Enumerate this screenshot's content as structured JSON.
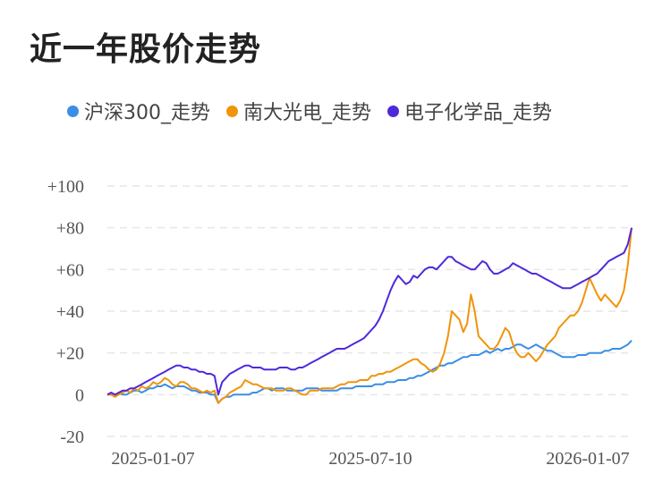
{
  "title": "近一年股价走势",
  "chart_data": {
    "type": "line",
    "title": "近一年股价走势",
    "ylim": [
      -20,
      100
    ],
    "yticks": [
      -20,
      0,
      20,
      40,
      60,
      80,
      100
    ],
    "ytick_labels": [
      "-20",
      "0",
      "+20",
      "+40",
      "+60",
      "+80",
      "+100"
    ],
    "x_tick_labels": [
      "2025-01-07",
      "2025-07-10",
      "2026-01-07"
    ],
    "grid": true,
    "legend_position": "top",
    "series": [
      {
        "name": "沪深300_走势",
        "color": "#3a8ee6",
        "values": [
          0,
          0,
          -1,
          1,
          0,
          0,
          1,
          2,
          2,
          1,
          2,
          3,
          3,
          4,
          4,
          5,
          4,
          3,
          4,
          4,
          4,
          3,
          2,
          2,
          1,
          1,
          1,
          0,
          0,
          -4,
          -2,
          -1,
          -1,
          0,
          0,
          0,
          0,
          0,
          1,
          1,
          2,
          3,
          3,
          2,
          3,
          3,
          3,
          2,
          2,
          2,
          2,
          2,
          3,
          3,
          3,
          3,
          2,
          2,
          2,
          2,
          2,
          3,
          3,
          3,
          3,
          4,
          4,
          4,
          4,
          4,
          5,
          5,
          5,
          6,
          6,
          6,
          7,
          7,
          7,
          8,
          8,
          9,
          9,
          10,
          11,
          12,
          13,
          14,
          14,
          15,
          15,
          16,
          17,
          18,
          18,
          19,
          19,
          19,
          20,
          21,
          20,
          21,
          22,
          21,
          22,
          22,
          23,
          24,
          24,
          23,
          22,
          23,
          24,
          23,
          22,
          21,
          21,
          20,
          19,
          18,
          18,
          18,
          18,
          19,
          19,
          19,
          20,
          20,
          20,
          20,
          21,
          21,
          22,
          22,
          22,
          23,
          24,
          26
        ]
      },
      {
        "name": "南大光电_走势",
        "color": "#f0940a",
        "values": [
          0,
          0,
          -1,
          0,
          1,
          2,
          1,
          3,
          2,
          4,
          3,
          4,
          6,
          5,
          6,
          8,
          7,
          5,
          4,
          6,
          6,
          5,
          3,
          3,
          2,
          1,
          2,
          1,
          2,
          -4,
          -2,
          -1,
          1,
          2,
          3,
          4,
          7,
          6,
          5,
          5,
          4,
          3,
          3,
          3,
          2,
          2,
          2,
          3,
          3,
          2,
          1,
          0,
          0,
          2,
          2,
          2,
          3,
          3,
          3,
          3,
          4,
          5,
          5,
          6,
          6,
          6,
          7,
          7,
          7,
          9,
          9,
          10,
          10,
          11,
          11,
          12,
          13,
          14,
          15,
          16,
          17,
          17,
          15,
          14,
          12,
          11,
          12,
          15,
          20,
          28,
          40,
          38,
          36,
          30,
          34,
          48,
          40,
          28,
          26,
          24,
          22,
          22,
          24,
          28,
          32,
          30,
          24,
          20,
          18,
          18,
          20,
          18,
          16,
          18,
          21,
          24,
          26,
          28,
          32,
          34,
          36,
          38,
          38,
          40,
          44,
          50,
          56,
          52,
          48,
          45,
          48,
          46,
          44,
          42,
          45,
          50,
          62,
          80
        ]
      },
      {
        "name": "电子化学品_走势",
        "color": "#4f29d9",
        "values": [
          0,
          1,
          0,
          1,
          2,
          2,
          3,
          3,
          4,
          5,
          6,
          7,
          8,
          9,
          10,
          11,
          12,
          13,
          14,
          14,
          13,
          13,
          12,
          12,
          11,
          11,
          10,
          10,
          9,
          0,
          6,
          8,
          10,
          11,
          12,
          13,
          14,
          14,
          13,
          13,
          13,
          12,
          12,
          12,
          12,
          13,
          13,
          13,
          12,
          12,
          13,
          13,
          14,
          15,
          16,
          17,
          18,
          19,
          20,
          21,
          22,
          22,
          22,
          23,
          24,
          25,
          26,
          27,
          29,
          31,
          33,
          36,
          40,
          45,
          50,
          54,
          57,
          55,
          53,
          54,
          57,
          56,
          58,
          60,
          61,
          61,
          60,
          62,
          64,
          66,
          66,
          64,
          63,
          62,
          61,
          60,
          60,
          62,
          64,
          63,
          60,
          58,
          58,
          59,
          60,
          61,
          63,
          62,
          61,
          60,
          59,
          58,
          58,
          57,
          56,
          55,
          54,
          53,
          52,
          51,
          51,
          51,
          52,
          53,
          54,
          55,
          56,
          57,
          58,
          60,
          62,
          64,
          65,
          66,
          67,
          68,
          72,
          80
        ]
      }
    ]
  }
}
